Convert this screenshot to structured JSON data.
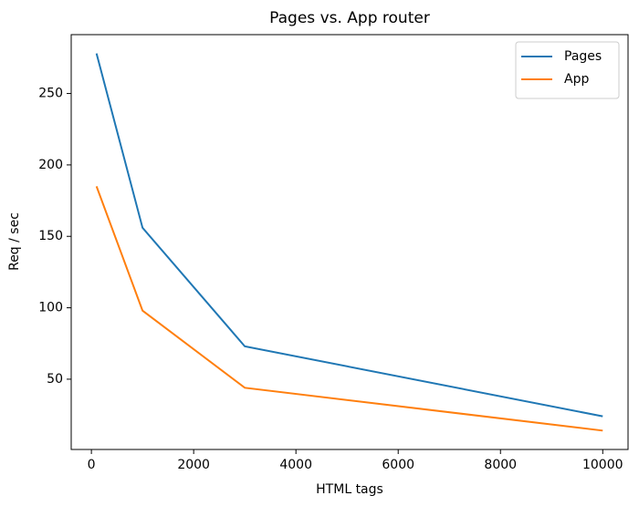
{
  "chart_data": {
    "type": "line",
    "title": "Pages vs. App router",
    "x_label": "HTML tags",
    "y_label": "Req / sec",
    "x": [
      100,
      1000,
      3000,
      10000
    ],
    "series": [
      {
        "name": "Pages",
        "color": "#1f77b4",
        "values": [
          278,
          156,
          73,
          24
        ]
      },
      {
        "name": "App",
        "color": "#ff7f0e",
        "values": [
          185,
          98,
          44,
          14
        ]
      }
    ],
    "xlim": [
      -395,
      10495
    ],
    "xticks": [
      0,
      2000,
      4000,
      6000,
      8000,
      10000
    ],
    "ylim": [
      0.8,
      291.2
    ],
    "yticks": [
      50,
      100,
      150,
      200,
      250
    ],
    "legend": "upper right"
  }
}
